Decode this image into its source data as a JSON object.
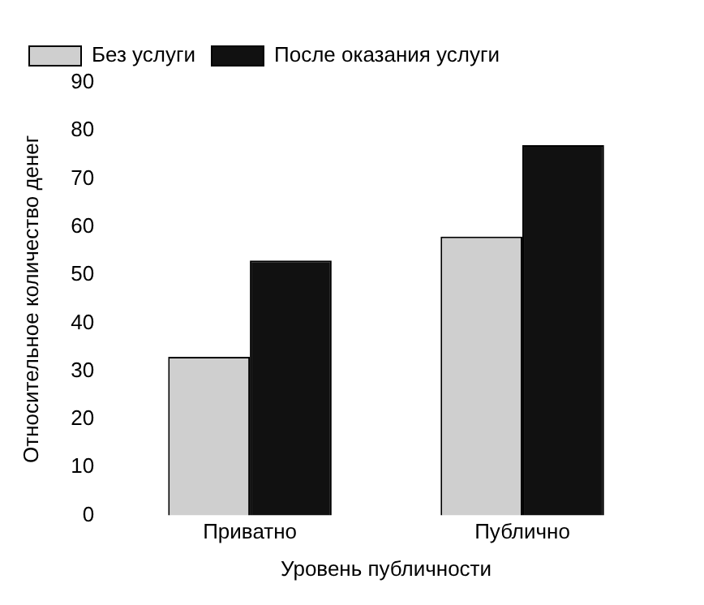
{
  "chart_data": {
    "type": "bar",
    "xlabel": "Уровень публичности",
    "ylabel": "Относительное количество денег",
    "categories": [
      "Приватно",
      "Публично"
    ],
    "series": [
      {
        "name": "Без услуги",
        "color": "#cfcfcf",
        "values": [
          33,
          58
        ]
      },
      {
        "name": "После оказания услуги",
        "color": "#111111",
        "values": [
          53,
          77
        ]
      }
    ],
    "ylim": [
      0,
      90
    ],
    "yticks": [
      0,
      10,
      20,
      30,
      40,
      50,
      60,
      70,
      80,
      90
    ],
    "grid": false,
    "legend": "top left"
  }
}
